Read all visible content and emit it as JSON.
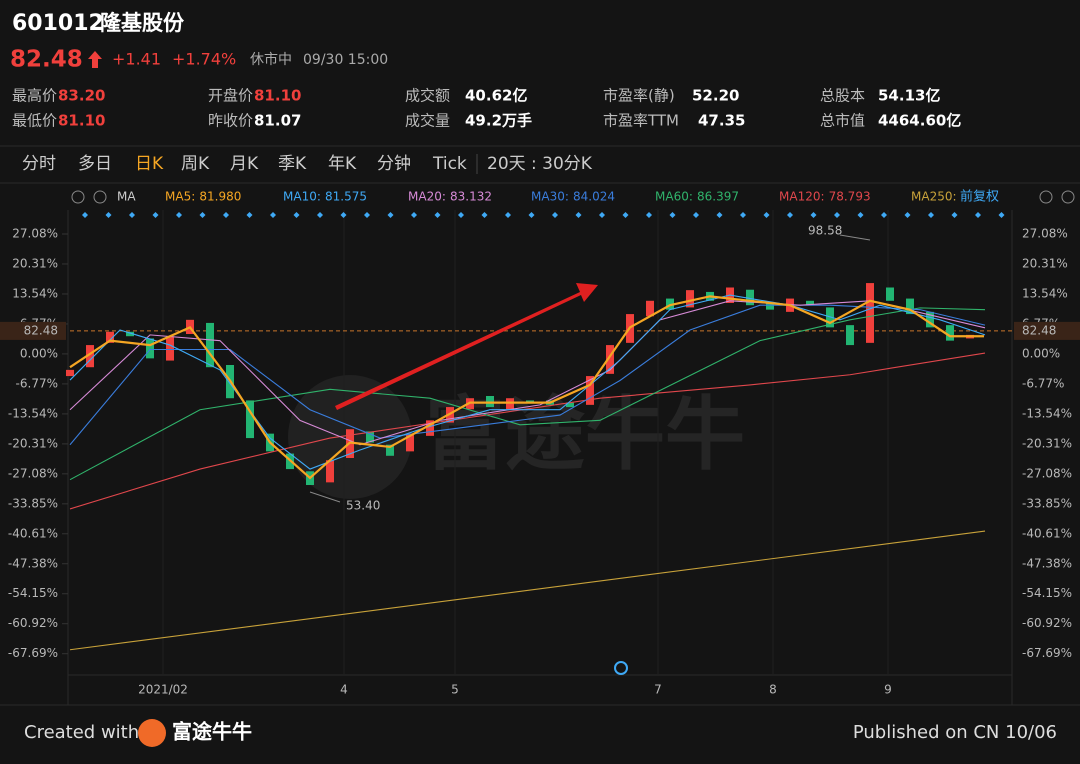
{
  "header": {
    "code": "601012",
    "name": "隆基股份",
    "price": "82.48",
    "change": "+1.41",
    "change_pct": "+1.74%",
    "status": "休市中",
    "time": "09/30 15:00"
  },
  "stats": [
    {
      "label": "最高价",
      "value": "83.20"
    },
    {
      "label": "开盘价",
      "value": "81.10"
    },
    {
      "label": "成交额",
      "value": "40.62亿"
    },
    {
      "label": "市盈率(静)",
      "value": "52.20"
    },
    {
      "label": "总股本",
      "value": "54.13亿"
    },
    {
      "label": "最低价",
      "value": "81.10"
    },
    {
      "label": "昨收价",
      "value": "81.07"
    },
    {
      "label": "成交量",
      "value": "49.2万手"
    },
    {
      "label": "市盈率TTM",
      "value": "47.35"
    },
    {
      "label": "总市值",
      "value": "4464.60亿"
    }
  ],
  "tabs": [
    "分时",
    "多日",
    "日K",
    "周K",
    "月K",
    "季K",
    "年K",
    "分钟",
    "Tick"
  ],
  "active_tab": 2,
  "tab_extra": "20天 : 30分K",
  "toolbar": {
    "ma_label": "MA",
    "adjust": "前复权"
  },
  "chart_data": {
    "type": "candlestick",
    "up_color": "#f0403c",
    "down_color": "#22b573",
    "open": [
      -5,
      -3,
      2.5,
      5,
      3.5,
      -1.5,
      4.5,
      7,
      -2.5,
      -10.5,
      -18,
      -22.5,
      -26.5,
      -29,
      -23.5,
      -17.5,
      -20.5,
      -22,
      -18.5,
      -15.5,
      -12.5,
      -9.5,
      -12.5,
      -10.5,
      -10.5,
      -11,
      -11.5,
      -4.5,
      2.5,
      8.5,
      12.5,
      10.5,
      14,
      11.5,
      14.5,
      11.5,
      9.5,
      12,
      10.5,
      6.5,
      2.5,
      15,
      12.5,
      9.5,
      6.5,
      3.5
    ],
    "close": [
      -3.6,
      2,
      5,
      4,
      -1,
      4,
      7.7,
      -3,
      -10,
      -19,
      -22,
      -26,
      -29.6,
      -24,
      -17,
      -20,
      -23,
      -18,
      -15,
      -12,
      -10,
      -12,
      -10,
      -11,
      -11.5,
      -12,
      -5,
      2,
      9,
      12,
      10,
      14.4,
      12,
      15,
      11,
      10,
      12.5,
      11,
      6,
      2,
      16,
      12,
      9,
      6,
      3,
      4.3
    ],
    "series": [
      {
        "name": "MA5:",
        "legend_value": "81.980",
        "color": "#f5a623",
        "x": [
          0,
          2,
          4,
          6,
          8,
          10,
          12,
          14,
          16,
          18,
          20,
          22,
          24,
          26,
          28,
          30,
          32,
          34,
          36,
          38,
          40,
          42,
          44,
          45.7
        ],
        "values": [
          -3,
          3,
          2,
          6,
          -6,
          -20,
          -28,
          -20,
          -21,
          -16,
          -11,
          -11,
          -11,
          -7,
          6,
          11,
          13,
          12,
          11,
          7,
          12,
          10,
          4,
          4
        ]
      },
      {
        "name": "MA10:",
        "legend_value": "81.575",
        "color": "#3fa9f5",
        "x": [
          0,
          2.5,
          5,
          7.5,
          10,
          12,
          14.5,
          17.5,
          21,
          24.5,
          27.5,
          30,
          33,
          36,
          38.5,
          40.5,
          43.5,
          45.75
        ],
        "values": [
          -5.9,
          5.4,
          2,
          -3.6,
          -19,
          -26,
          -21.7,
          -17,
          -12.6,
          -12.6,
          -1.4,
          10,
          13.3,
          11,
          7.7,
          11,
          7.7,
          4.3
        ]
      },
      {
        "name": "MA20:",
        "legend_value": "83.132",
        "color": "#d68ad6",
        "x": [
          0,
          4,
          7.5,
          11.5,
          14.5,
          18.5,
          23.5,
          27,
          29.5,
          33,
          36.5,
          40,
          43,
          45.75
        ],
        "values": [
          -12.6,
          4.3,
          3,
          -15,
          -20.5,
          -15,
          -11.5,
          -3.6,
          7.7,
          12,
          11,
          12,
          8.8,
          5.9
        ]
      },
      {
        "name": "MA30:",
        "legend_value": "84.024",
        "color": "#3a7ddc",
        "x": [
          0,
          4,
          8,
          12,
          15.5,
          19,
          24.5,
          27.5,
          31,
          34.5,
          38,
          42.5,
          45.75
        ],
        "values": [
          -20.5,
          1,
          1,
          -12.6,
          -19,
          -17,
          -13.8,
          -6,
          5.4,
          11,
          11,
          10,
          6.5
        ]
      },
      {
        "name": "MA60:",
        "legend_value": "86.397",
        "color": "#30b36b",
        "x": [
          0,
          6.5,
          13,
          18,
          22.5,
          26.5,
          30.5,
          34.5,
          39,
          42.5,
          45.75
        ],
        "values": [
          -28.4,
          -12.6,
          -8,
          -10,
          -16,
          -15,
          -6,
          3,
          7.7,
          10.4,
          10
        ]
      },
      {
        "name": "MA120:",
        "legend_value": "78.793",
        "color": "#e0474c",
        "x": [
          0,
          6.5,
          13,
          19,
          26.5,
          34,
          39,
          45.75
        ],
        "values": [
          -35,
          -26,
          -19,
          -15,
          -10,
          -7,
          -4.7,
          0.2
        ]
      },
      {
        "name": "MA250:",
        "color": "#c8a23a",
        "x": [
          0,
          45.75
        ],
        "values": [
          -66.8,
          -40
        ]
      }
    ],
    "xlim": [
      0,
      45.75
    ],
    "xticks": [
      {
        "value": 4.65,
        "label": "2021/02"
      },
      {
        "value": 13.7,
        "label": "4"
      },
      {
        "value": 19.25,
        "label": "5"
      },
      {
        "value": 29.4,
        "label": "7"
      },
      {
        "value": 35.15,
        "label": "8"
      },
      {
        "value": 40.9,
        "label": "9"
      }
    ],
    "ylim": [
      -72.5,
      32.5
    ],
    "yticks": [
      {
        "value": 27.08,
        "label": "27.08%"
      },
      {
        "value": 20.31,
        "label": "20.31%"
      },
      {
        "value": 13.54,
        "label": "13.54%"
      },
      {
        "value": 6.77,
        "label": "6.77%"
      },
      {
        "value": 0,
        "label": "0.00%"
      },
      {
        "value": -6.77,
        "label": "-6.77%"
      },
      {
        "value": -13.54,
        "label": "-13.54%"
      },
      {
        "value": -20.31,
        "label": "-20.31%"
      },
      {
        "value": -27.08,
        "label": "-27.08%"
      },
      {
        "value": -33.85,
        "label": "-33.85%"
      },
      {
        "value": -40.61,
        "label": "-40.61%"
      },
      {
        "value": -47.38,
        "label": "-47.38%"
      },
      {
        "value": -54.15,
        "label": "-54.15%"
      },
      {
        "value": -60.92,
        "label": "-60.92%"
      },
      {
        "value": -67.69,
        "label": "-67.69%"
      }
    ],
    "last_price": {
      "value": 5.2,
      "label": "82.48"
    },
    "annotations": [
      {
        "text": "98.58"
      },
      {
        "text": "53.40"
      }
    ]
  },
  "watermark": "富途牛牛",
  "footer": {
    "created": "Created with",
    "brand": "富途牛牛",
    "published": "Published on CN 10/06"
  }
}
